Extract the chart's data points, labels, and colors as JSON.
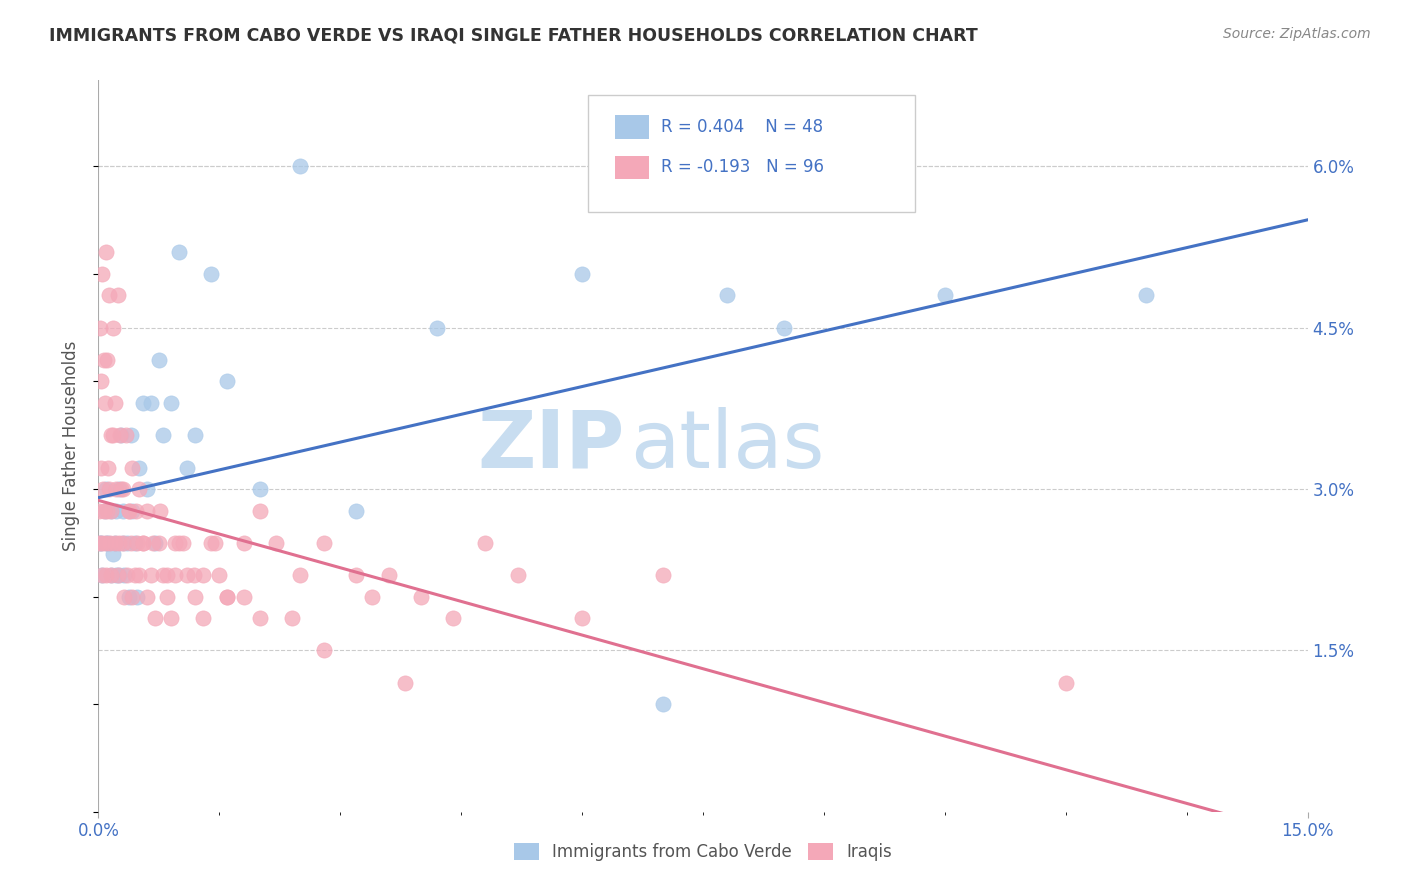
{
  "title": "IMMIGRANTS FROM CABO VERDE VS IRAQI SINGLE FATHER HOUSEHOLDS CORRELATION CHART",
  "source": "Source: ZipAtlas.com",
  "ylabel": "Single Father Households",
  "right_yticks": [
    "6.0%",
    "4.5%",
    "3.0%",
    "1.5%"
  ],
  "right_ytick_vals": [
    0.06,
    0.045,
    0.03,
    0.015
  ],
  "legend1_r": "0.404",
  "legend1_n": "48",
  "legend2_r": "-0.193",
  "legend2_n": "96",
  "legend_label1": "Immigrants from Cabo Verde",
  "legend_label2": "Iraqis",
  "blue_color": "#a8c8e8",
  "pink_color": "#f4a8b8",
  "line_blue": "#4472c4",
  "line_pink": "#e07090",
  "cabo_x": [
    0.0002,
    0.0003,
    0.0005,
    0.0008,
    0.001,
    0.001,
    0.0012,
    0.0015,
    0.0015,
    0.0018,
    0.002,
    0.0022,
    0.0022,
    0.0025,
    0.0025,
    0.0028,
    0.003,
    0.003,
    0.0032,
    0.0035,
    0.0038,
    0.004,
    0.0042,
    0.0045,
    0.0048,
    0.005,
    0.0055,
    0.006,
    0.0065,
    0.007,
    0.0075,
    0.008,
    0.009,
    0.01,
    0.011,
    0.012,
    0.014,
    0.016,
    0.02,
    0.025,
    0.032,
    0.042,
    0.06,
    0.07,
    0.078,
    0.085,
    0.105,
    0.13
  ],
  "cabo_y": [
    0.025,
    0.025,
    0.022,
    0.028,
    0.03,
    0.025,
    0.025,
    0.022,
    0.028,
    0.024,
    0.025,
    0.022,
    0.028,
    0.03,
    0.022,
    0.035,
    0.025,
    0.028,
    0.022,
    0.025,
    0.02,
    0.035,
    0.028,
    0.025,
    0.02,
    0.032,
    0.038,
    0.03,
    0.038,
    0.025,
    0.042,
    0.035,
    0.038,
    0.052,
    0.032,
    0.035,
    0.05,
    0.04,
    0.03,
    0.06,
    0.028,
    0.045,
    0.05,
    0.01,
    0.048,
    0.045,
    0.048,
    0.048
  ],
  "iraqi_x": [
    0.0001,
    0.0002,
    0.0003,
    0.0004,
    0.0005,
    0.0006,
    0.0007,
    0.0008,
    0.0009,
    0.001,
    0.0011,
    0.0012,
    0.0013,
    0.0014,
    0.0015,
    0.0016,
    0.0018,
    0.002,
    0.0022,
    0.0024,
    0.0026,
    0.0028,
    0.003,
    0.0032,
    0.0035,
    0.0038,
    0.004,
    0.0042,
    0.0045,
    0.0048,
    0.005,
    0.0055,
    0.006,
    0.0065,
    0.007,
    0.0075,
    0.008,
    0.0085,
    0.009,
    0.0095,
    0.01,
    0.011,
    0.012,
    0.013,
    0.014,
    0.015,
    0.016,
    0.018,
    0.02,
    0.022,
    0.025,
    0.028,
    0.032,
    0.036,
    0.04,
    0.044,
    0.048,
    0.052,
    0.06,
    0.07,
    0.0001,
    0.0003,
    0.0005,
    0.0007,
    0.0009,
    0.0011,
    0.0013,
    0.0015,
    0.0018,
    0.0021,
    0.0024,
    0.0027,
    0.003,
    0.0034,
    0.0038,
    0.0042,
    0.0046,
    0.005,
    0.0055,
    0.006,
    0.0068,
    0.0076,
    0.0085,
    0.0095,
    0.0105,
    0.0118,
    0.013,
    0.0145,
    0.016,
    0.018,
    0.02,
    0.024,
    0.028,
    0.034,
    0.038,
    0.12
  ],
  "iraqi_y": [
    0.028,
    0.045,
    0.032,
    0.05,
    0.025,
    0.03,
    0.042,
    0.038,
    0.025,
    0.022,
    0.028,
    0.032,
    0.03,
    0.025,
    0.022,
    0.028,
    0.035,
    0.025,
    0.03,
    0.022,
    0.025,
    0.03,
    0.025,
    0.02,
    0.022,
    0.028,
    0.025,
    0.02,
    0.022,
    0.025,
    0.022,
    0.025,
    0.02,
    0.022,
    0.018,
    0.025,
    0.022,
    0.02,
    0.018,
    0.022,
    0.025,
    0.022,
    0.02,
    0.018,
    0.025,
    0.022,
    0.02,
    0.025,
    0.028,
    0.025,
    0.022,
    0.025,
    0.022,
    0.022,
    0.02,
    0.018,
    0.025,
    0.022,
    0.018,
    0.022,
    0.025,
    0.04,
    0.022,
    0.028,
    0.052,
    0.042,
    0.048,
    0.035,
    0.045,
    0.038,
    0.048,
    0.035,
    0.03,
    0.035,
    0.028,
    0.032,
    0.028,
    0.03,
    0.025,
    0.028,
    0.025,
    0.028,
    0.022,
    0.025,
    0.025,
    0.022,
    0.022,
    0.025,
    0.02,
    0.02,
    0.018,
    0.018,
    0.015,
    0.02,
    0.012,
    0.012
  ],
  "xmin": 0.0,
  "xmax": 0.15,
  "ymin": 0.0,
  "ymax": 0.068,
  "background_color": "#ffffff",
  "grid_color": "#cccccc",
  "title_color": "#333333",
  "watermark_zip": "ZIP",
  "watermark_atlas": "atlas",
  "watermark_color": "#c8ddf0"
}
